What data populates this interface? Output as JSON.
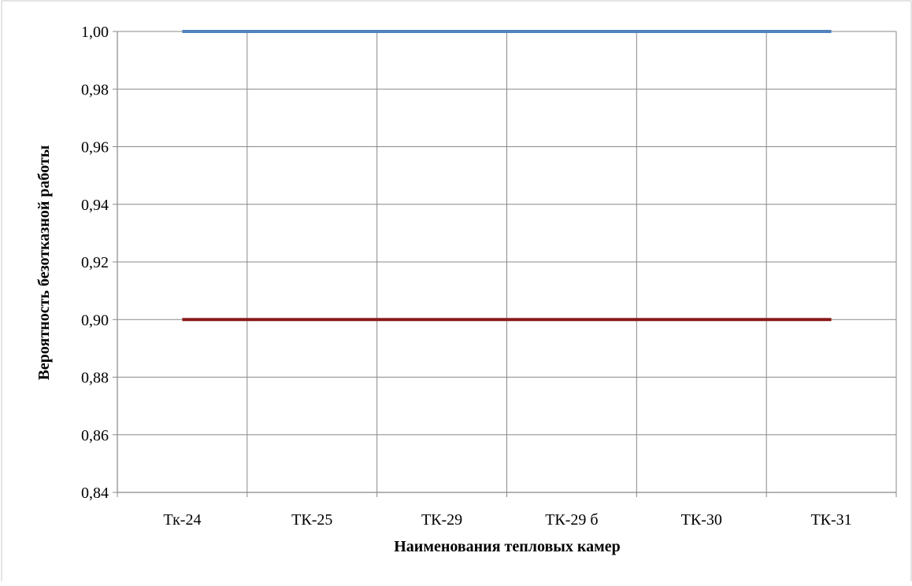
{
  "chart_data": {
    "type": "line",
    "title": "",
    "xlabel": "Наименования тепловых камер",
    "ylabel": "Вероятность безотказной работы",
    "categories": [
      "Тк-24",
      "ТК-25",
      "ТК-29",
      "ТК-29 б",
      "ТК-30",
      "ТК-31"
    ],
    "series": [
      {
        "values": [
          1.0,
          1.0,
          1.0,
          1.0,
          1.0,
          1.0
        ],
        "color": "#4f81bd"
      },
      {
        "values": [
          0.9,
          0.9,
          0.9,
          0.9,
          0.9,
          0.9
        ],
        "color": "#8b1a1a"
      }
    ],
    "ylim": [
      0.84,
      1.0
    ],
    "yticks": [
      "0,84",
      "0,86",
      "0,88",
      "0,90",
      "0,92",
      "0,94",
      "0,96",
      "0,98",
      "1,00"
    ],
    "grid": true,
    "legend": "none"
  },
  "colors": {
    "grid": "#898989",
    "frame": "#898989",
    "background": "#ffffff"
  }
}
